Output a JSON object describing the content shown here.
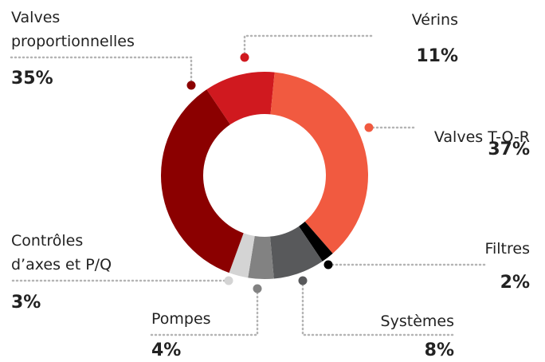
{
  "chart_data": {
    "type": "donut",
    "categories": [
      "Vérins",
      "Valves T-O-R",
      "Filtres",
      "Systèmes",
      "Pompes",
      "Contrôles d’axes et P/Q",
      "Valves proportionnelles"
    ],
    "values": [
      11,
      37,
      2,
      8,
      4,
      3,
      35
    ],
    "value_labels": [
      "11%",
      "37%",
      "2%",
      "8%",
      "4%",
      "3%",
      "35%"
    ],
    "colors": [
      "#d0191f",
      "#f15a40",
      "#000000",
      "#58595b",
      "#828282",
      "#d4d4d4",
      "#8b0000"
    ]
  }
}
